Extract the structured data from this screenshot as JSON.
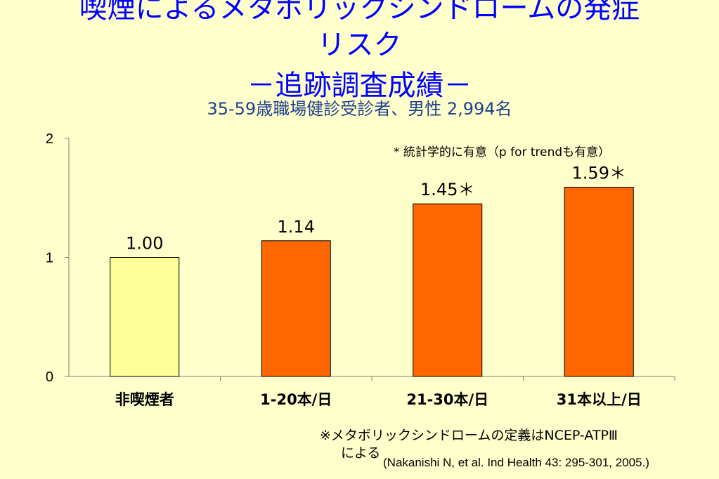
{
  "title": {
    "line1": "喫煙によるメタボリックシンドロームの発症",
    "line2": "リスク",
    "line3": "－追跡調査成績－"
  },
  "subtitle": "35-59歳職場健診受診者、男性 2,994名",
  "notes": {
    "significance": "* 統計学的に有意（p for trendも有意）",
    "definition_line1": "※メタボリックシンドロームの定義はNCEP-ATPⅢ",
    "definition_line2": "による",
    "citation": "(Nakanishi N, et al. Ind Health 43: 295-301, 2005.)"
  },
  "colors": {
    "background": "#FFFFCC",
    "title": "#0000FF",
    "subtitle": "#1F3F8F",
    "reference_bar": "#FFFF99",
    "smoker_bar": "#FF6600"
  },
  "chart_data": {
    "type": "bar",
    "categories": [
      "非喫煙者",
      "1-20本/日",
      "21-30本/日",
      "31本以上/日"
    ],
    "values": [
      1.0,
      1.14,
      1.45,
      1.59
    ],
    "data_labels": [
      "1.00",
      "1.14",
      "1.45＊",
      "1.59＊"
    ],
    "ylim": [
      0,
      2
    ],
    "yticks": [
      "0",
      "1",
      "2"
    ],
    "title": "",
    "xlabel": "",
    "ylabel": "",
    "grid": false,
    "legend": "none"
  }
}
